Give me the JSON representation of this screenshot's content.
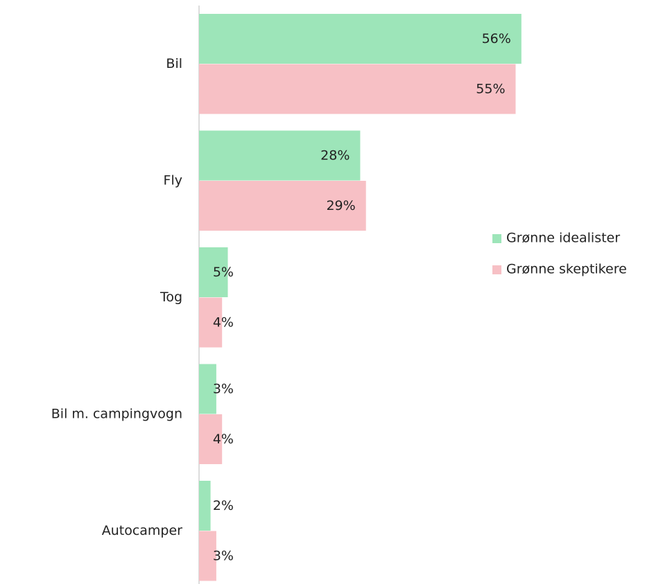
{
  "chart_data": {
    "type": "bar",
    "orientation": "horizontal",
    "categories": [
      "Bil",
      "Fly",
      "Tog",
      "Bil m. campingvogn",
      "Autocamper"
    ],
    "series": [
      {
        "name": "Grønne idealister",
        "color": "#9de5b9",
        "values": [
          56,
          28,
          5,
          3,
          2
        ],
        "value_labels": [
          "56%",
          "28%",
          "5%",
          "3%",
          "2%"
        ]
      },
      {
        "name": "Grønne skeptikere",
        "color": "#f7c0c5",
        "values": [
          55,
          29,
          4,
          4,
          3
        ],
        "value_labels": [
          "55%",
          "29%",
          "4%",
          "4%",
          "3%"
        ]
      }
    ],
    "legend": "right"
  }
}
